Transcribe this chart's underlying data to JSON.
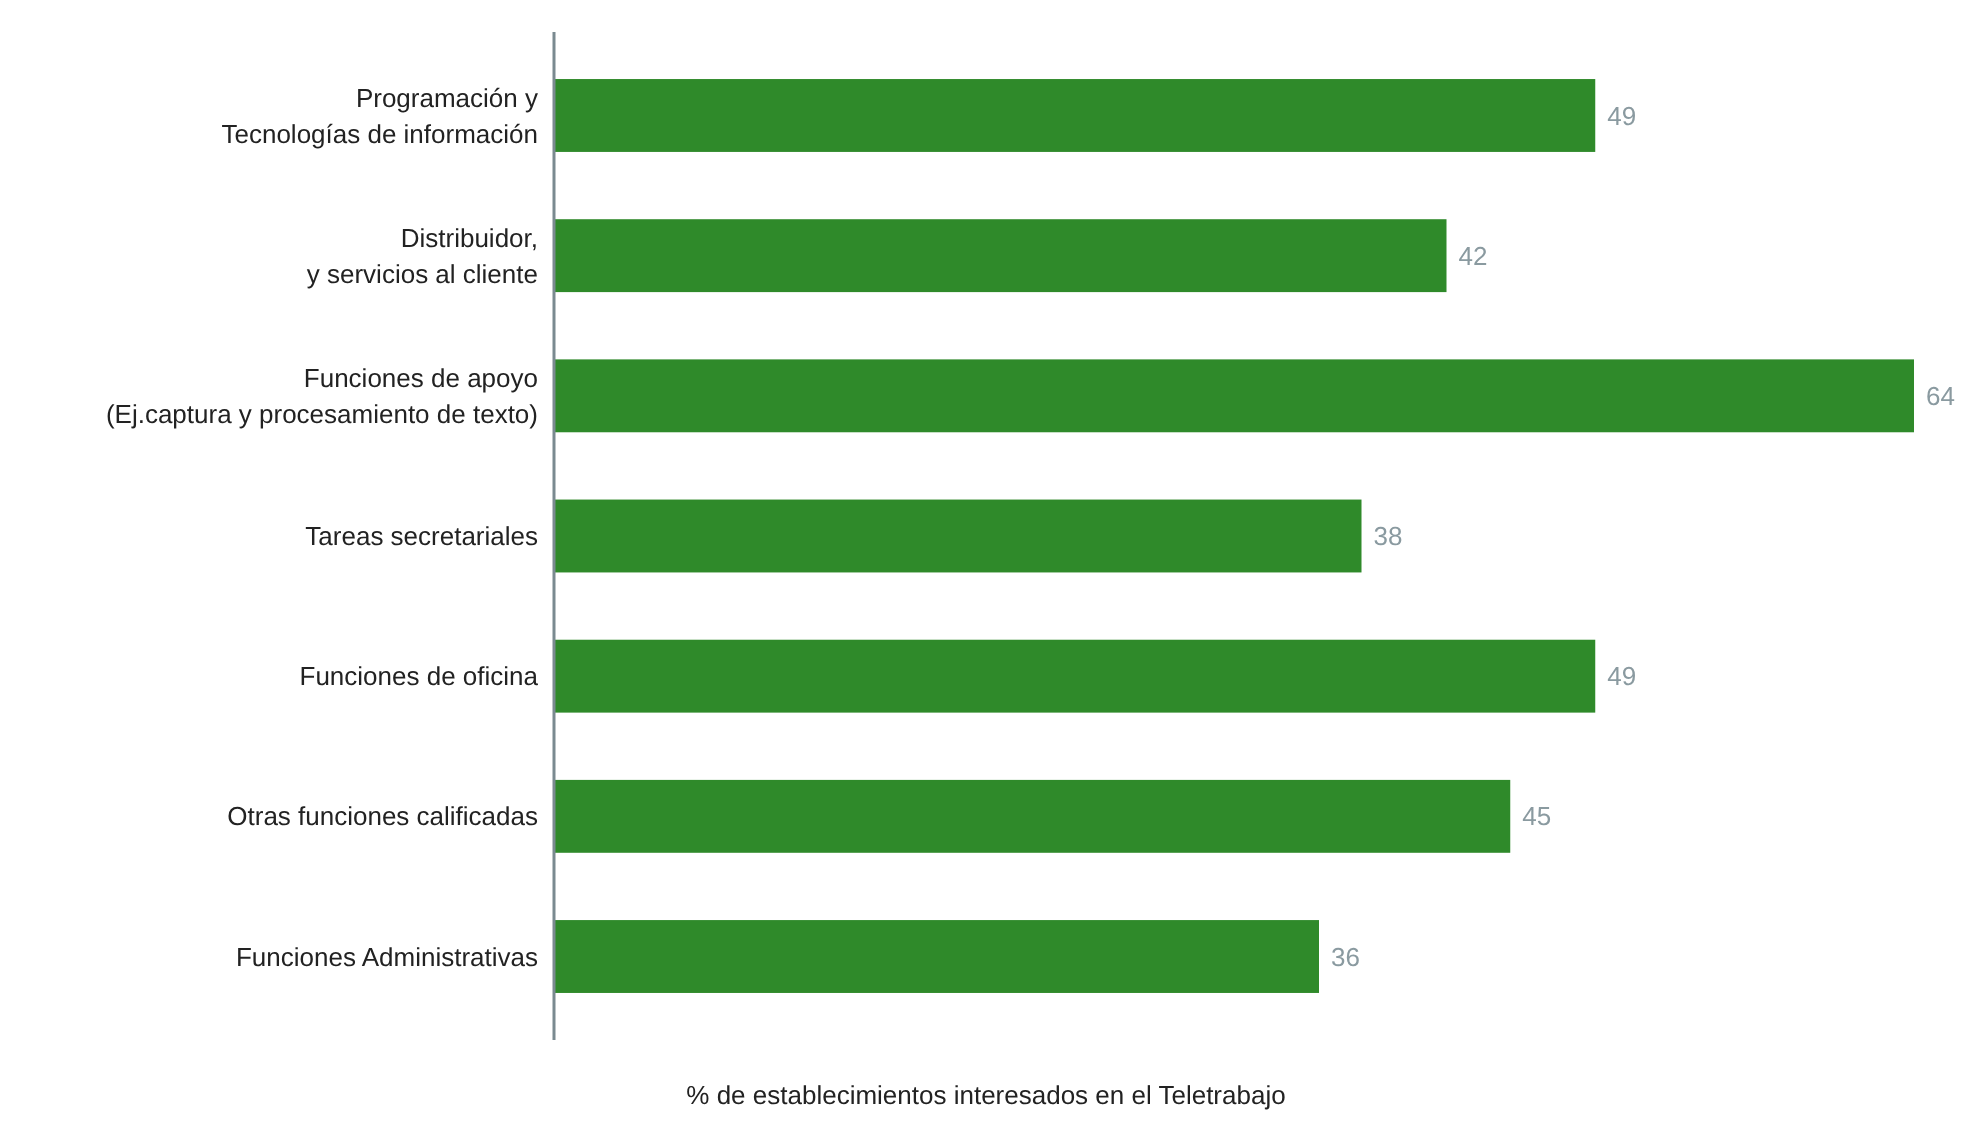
{
  "chart_data": {
    "type": "bar",
    "orientation": "horizontal",
    "xlabel": "% de establecimientos interesados en el Teletrabajo",
    "categories": [
      "Programación y\nTecnologías de información",
      "Distribuidor,\ny servicios al cliente",
      "Funciones de apoyo\n(Ej.captura y procesamiento de texto)",
      "Tareas secretariales",
      "Funciones de oficina",
      "Otras funciones calificadas",
      "Funciones Administrativas"
    ],
    "values": [
      49,
      42,
      64,
      38,
      49,
      45,
      36
    ],
    "color": "#2f8a2a",
    "xlim": [
      0,
      64
    ],
    "data_labels": true,
    "tick_labels": "y"
  }
}
